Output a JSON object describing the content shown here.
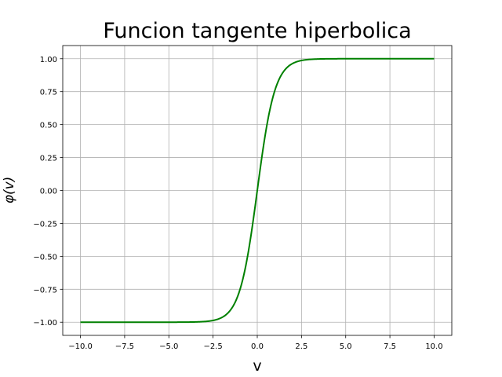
{
  "chart_data": {
    "type": "line",
    "title": "Funcion tangente hiperbolica",
    "xlabel": "v",
    "ylabel": "φ(v)",
    "xlim": [
      -11.0,
      11.0
    ],
    "ylim": [
      -1.1,
      1.1
    ],
    "grid": true,
    "x_ticks": [
      -10.0,
      -7.5,
      -5.0,
      -2.5,
      0.0,
      2.5,
      5.0,
      7.5,
      10.0
    ],
    "x_tick_labels": [
      "−10.0",
      "−7.5",
      "−5.0",
      "−2.5",
      "0.0",
      "2.5",
      "5.0",
      "7.5",
      "10.0"
    ],
    "y_ticks": [
      -1.0,
      -0.75,
      -0.5,
      -0.25,
      0.0,
      0.25,
      0.5,
      0.75,
      1.0
    ],
    "y_tick_labels": [
      "−1.00",
      "−0.75",
      "−0.50",
      "−0.25",
      "0.00",
      "0.25",
      "0.50",
      "0.75",
      "1.00"
    ],
    "series": [
      {
        "color": "#008000",
        "x": [
          -10,
          -5,
          -4,
          -3,
          -2.5,
          -2,
          -1.5,
          -1,
          -0.75,
          -0.5,
          -0.25,
          0,
          0.25,
          0.5,
          0.75,
          1,
          1.5,
          2,
          2.5,
          3,
          4,
          5,
          10
        ],
        "y": [
          -1.0,
          -0.9999,
          -0.9993,
          -0.9951,
          -0.9866,
          -0.964,
          -0.9051,
          -0.7616,
          -0.6351,
          -0.4621,
          -0.2449,
          0.0,
          0.2449,
          0.4621,
          0.6351,
          0.7616,
          0.9051,
          0.964,
          0.9866,
          0.9951,
          0.9993,
          0.9999,
          1.0
        ]
      }
    ]
  }
}
